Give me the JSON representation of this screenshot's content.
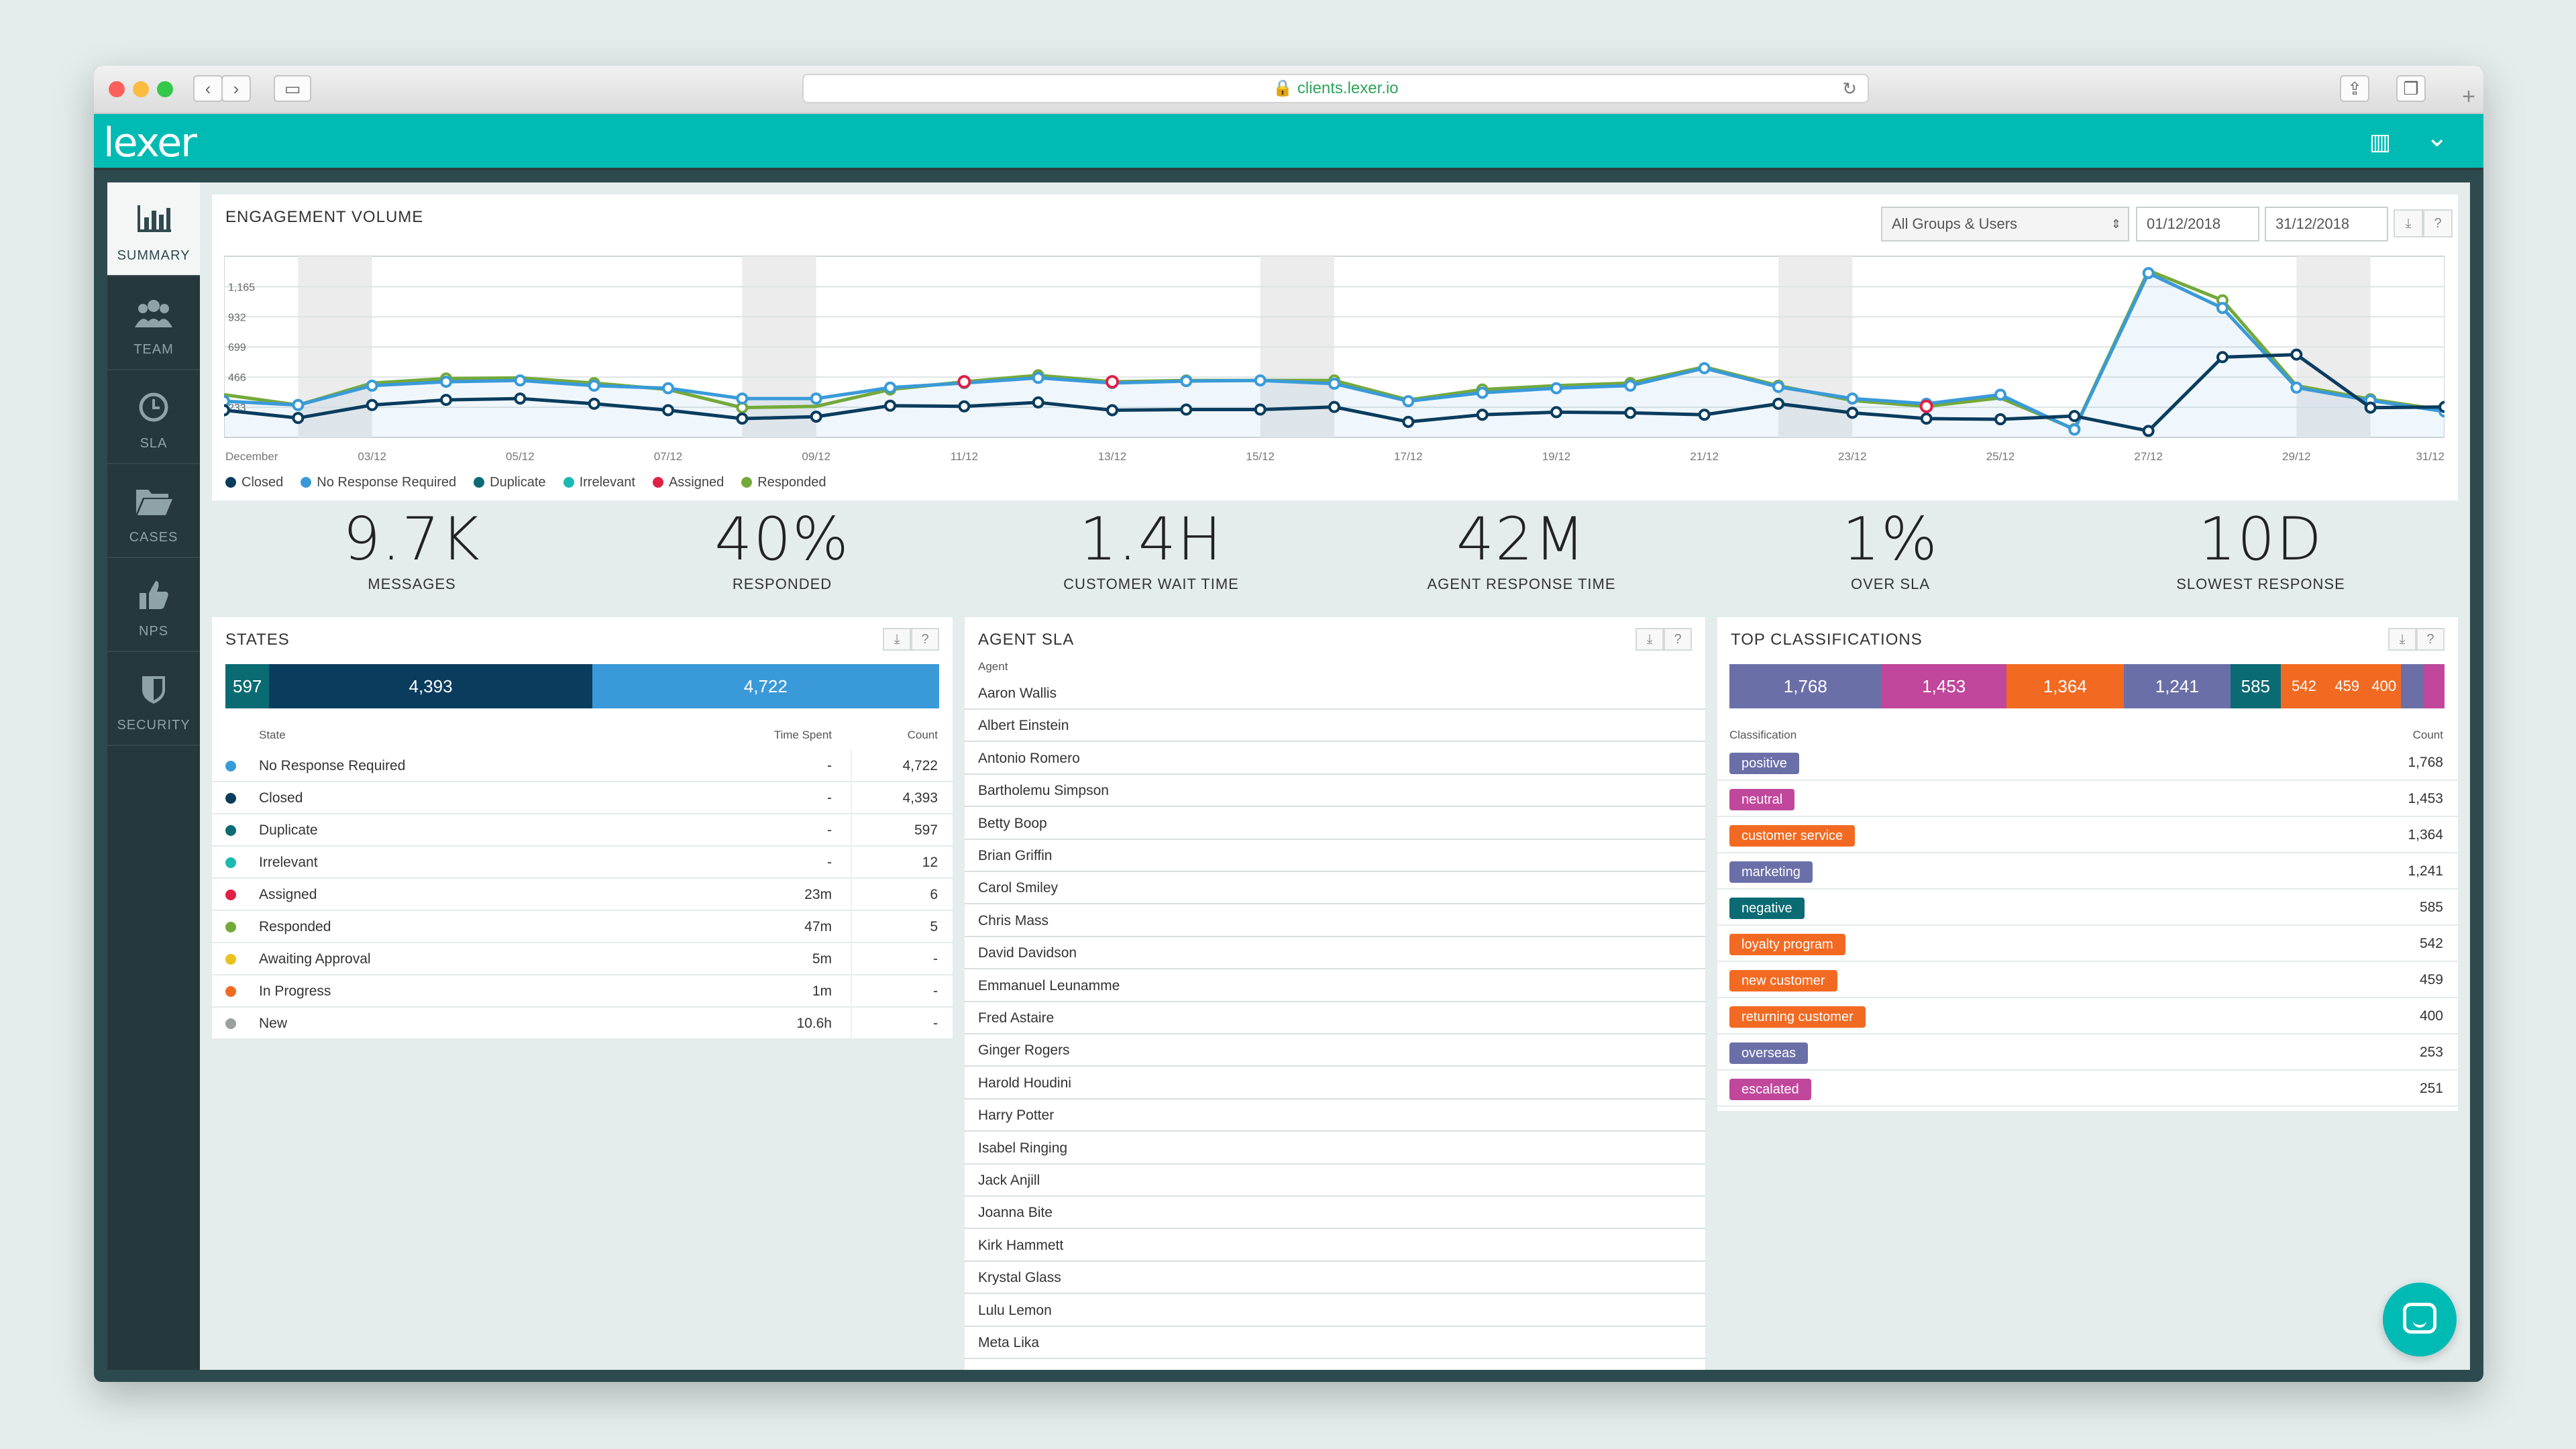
{
  "browser": {
    "url": "clients.lexer.io",
    "back": "‹",
    "forward": "›",
    "sidebar_toggle": "▭",
    "reload": "↻",
    "share": "⇪",
    "tabs": "❐",
    "new_tab": "+"
  },
  "app": {
    "logo": "lexer",
    "building_icon": "▥",
    "chevron": "⌄"
  },
  "nav": [
    {
      "label": "SUMMARY",
      "icon": "bar-chart-icon",
      "glyph": "▥",
      "active": true
    },
    {
      "label": "TEAM",
      "icon": "team-icon",
      "glyph": "☻",
      "active": false
    },
    {
      "label": "SLA",
      "icon": "clock-icon",
      "glyph": "◷",
      "active": false
    },
    {
      "label": "CASES",
      "icon": "folder-icon",
      "glyph": "▰",
      "active": false
    },
    {
      "label": "NPS",
      "icon": "thumbs-up-icon",
      "glyph": "♥",
      "active": false
    },
    {
      "label": "SECURITY",
      "icon": "shield-icon",
      "glyph": "◆",
      "active": false
    }
  ],
  "engagement": {
    "title": "ENGAGEMENT VOLUME",
    "group_select": "All Groups & Users",
    "date_from": "01/12/2018",
    "date_to": "31/12/2018",
    "download": "⤓",
    "help": "?"
  },
  "chart_data": {
    "type": "line",
    "y_ticks": [
      "1,165",
      "932",
      "699",
      "466",
      "233"
    ],
    "ylim": [
      0,
      1400
    ],
    "x_labels": [
      "December",
      "03/12",
      "05/12",
      "07/12",
      "09/12",
      "11/12",
      "13/12",
      "15/12",
      "17/12",
      "19/12",
      "21/12",
      "23/12",
      "25/12",
      "27/12",
      "29/12",
      "31/12"
    ],
    "x": [
      1,
      2,
      3,
      4,
      5,
      6,
      7,
      8,
      9,
      10,
      11,
      12,
      13,
      14,
      15,
      16,
      17,
      18,
      19,
      20,
      21,
      22,
      23,
      24,
      25,
      26,
      27,
      28,
      29,
      30,
      31
    ],
    "weekends": [
      [
        2,
        3
      ],
      [
        8,
        9
      ],
      [
        15,
        16
      ],
      [
        22,
        23
      ],
      [
        29,
        30
      ]
    ],
    "series": [
      {
        "name": "Closed",
        "color": "#0a3c5e",
        "values": [
          210,
          150,
          250,
          290,
          300,
          260,
          210,
          145,
          160,
          245,
          240,
          270,
          210,
          215,
          215,
          235,
          120,
          175,
          195,
          190,
          175,
          260,
          190,
          145,
          140,
          165,
          50,
          620,
          640,
          230,
          235
        ]
      },
      {
        "name": "No Response Required",
        "color": "#3a9ad9",
        "values": [
          280,
          250,
          400,
          430,
          440,
          400,
          380,
          300,
          300,
          385,
          420,
          460,
          420,
          435,
          440,
          415,
          280,
          345,
          380,
          400,
          535,
          390,
          300,
          260,
          330,
          60,
          1270,
          1000,
          385,
          285,
          200
        ]
      },
      {
        "name": "Duplicate",
        "color": "#0b6b73",
        "values": [
          0,
          0,
          0,
          0,
          0,
          0,
          0,
          0,
          0,
          0,
          0,
          0,
          0,
          0,
          0,
          0,
          0,
          0,
          0,
          0,
          0,
          0,
          0,
          0,
          0,
          0,
          0,
          0,
          0,
          0,
          0
        ]
      },
      {
        "name": "Irrelevant",
        "color": "#1bb9b1",
        "values": [
          0,
          0,
          0,
          0,
          0,
          0,
          0,
          0,
          0,
          0,
          0,
          0,
          0,
          0,
          0,
          0,
          0,
          0,
          0,
          0,
          0,
          0,
          0,
          0,
          0,
          0,
          0,
          0,
          0,
          0,
          0
        ]
      },
      {
        "name": "Assigned",
        "color": "#e02045",
        "values": [
          0,
          0,
          0,
          0,
          0,
          0,
          0,
          0,
          0,
          0,
          0,
          0,
          0,
          0,
          0,
          0,
          0,
          0,
          0,
          0,
          0,
          0,
          0,
          0,
          0,
          0,
          0,
          0,
          0,
          0,
          0
        ]
      },
      {
        "name": "Responded",
        "color": "#74a93a",
        "values": [
          330,
          250,
          420,
          455,
          460,
          420,
          370,
          230,
          240,
          370,
          430,
          480,
          430,
          440,
          440,
          440,
          290,
          370,
          400,
          420,
          545,
          400,
          285,
          240,
          305,
          65,
          1290,
          1060,
          400,
          295,
          210
        ]
      }
    ]
  },
  "stats": [
    {
      "value": "9.7K",
      "label": "MESSAGES"
    },
    {
      "value": "40%",
      "label": "RESPONDED"
    },
    {
      "value": "1.4H",
      "label": "CUSTOMER WAIT TIME"
    },
    {
      "value": "42M",
      "label": "AGENT RESPONSE TIME"
    },
    {
      "value": "1%",
      "label": "OVER SLA"
    },
    {
      "value": "10D",
      "label": "SLOWEST RESPONSE"
    }
  ],
  "states": {
    "title": "STATES",
    "bar": [
      {
        "label": "597",
        "value": 597,
        "color": "#0b6b73"
      },
      {
        "label": "4,393",
        "value": 4393,
        "color": "#0a3c5e"
      },
      {
        "label": "4,722",
        "value": 4722,
        "color": "#3a9ad9"
      }
    ],
    "headers": {
      "state": "State",
      "time": "Time Spent",
      "count": "Count"
    },
    "rows": [
      {
        "name": "No Response Required",
        "time": "-",
        "count": "4,722",
        "color": "#3a9ad9"
      },
      {
        "name": "Closed",
        "time": "-",
        "count": "4,393",
        "color": "#0a3c5e"
      },
      {
        "name": "Duplicate",
        "time": "-",
        "count": "597",
        "color": "#0b6b73"
      },
      {
        "name": "Irrelevant",
        "time": "-",
        "count": "12",
        "color": "#1bb9b1"
      },
      {
        "name": "Assigned",
        "time": "23m",
        "count": "6",
        "color": "#e02045"
      },
      {
        "name": "Responded",
        "time": "47m",
        "count": "5",
        "color": "#74a93a"
      },
      {
        "name": "Awaiting Approval",
        "time": "5m",
        "count": "-",
        "color": "#e8c11e"
      },
      {
        "name": "In Progress",
        "time": "1m",
        "count": "-",
        "color": "#f26a22"
      },
      {
        "name": "New",
        "time": "10.6h",
        "count": "-",
        "color": "#9aa0a0"
      }
    ]
  },
  "agent_sla": {
    "title": "AGENT SLA",
    "header": "Agent",
    "agents": [
      "Aaron Wallis",
      "Albert Einstein",
      "Antonio Romero",
      "Bartholemu Simpson",
      "Betty Boop",
      "Brian Griffin",
      "Carol Smiley",
      "Chris Mass",
      "David Davidson",
      "Emmanuel Leunamme",
      "Fred Astaire",
      "Ginger Rogers",
      "Harold Houdini",
      "Harry Potter",
      "Isabel Ringing",
      "Jack Anjill",
      "Joanna Bite",
      "Kirk Hammett",
      "Krystal Glass",
      "Lulu Lemon",
      "Meta Lika"
    ]
  },
  "classifications": {
    "title": "TOP CLASSIFICATIONS",
    "headers": {
      "name": "Classification",
      "count": "Count"
    },
    "bar": [
      {
        "label": "1,768",
        "value": 1768,
        "color": "#6b6fa8"
      },
      {
        "label": "1,453",
        "value": 1453,
        "color": "#c0479b"
      },
      {
        "label": "1,364",
        "value": 1364,
        "color": "#f26a22"
      },
      {
        "label": "1,241",
        "value": 1241,
        "color": "#6b6fa8"
      },
      {
        "label": "585",
        "value": 585,
        "color": "#0b6b73"
      },
      {
        "label": "542",
        "value": 542,
        "color": "#f26a22"
      },
      {
        "label": "459",
        "value": 459,
        "color": "#f26a22"
      },
      {
        "label": "400",
        "value": 400,
        "color": "#f26a22"
      },
      {
        "label": "",
        "value": 253,
        "color": "#6b6fa8"
      },
      {
        "label": "",
        "value": 251,
        "color": "#c0479b"
      }
    ],
    "rows": [
      {
        "name": "positive",
        "count": "1,768",
        "color": "#6b6fa8"
      },
      {
        "name": "neutral",
        "count": "1,453",
        "color": "#c0479b"
      },
      {
        "name": "customer service",
        "count": "1,364",
        "color": "#f26a22"
      },
      {
        "name": "marketing",
        "count": "1,241",
        "color": "#6b6fa8"
      },
      {
        "name": "negative",
        "count": "585",
        "color": "#0b6b73"
      },
      {
        "name": "loyalty program",
        "count": "542",
        "color": "#f26a22"
      },
      {
        "name": "new customer",
        "count": "459",
        "color": "#f26a22"
      },
      {
        "name": "returning customer",
        "count": "400",
        "color": "#f26a22"
      },
      {
        "name": "overseas",
        "count": "253",
        "color": "#6b6fa8"
      },
      {
        "name": "escalated",
        "count": "251",
        "color": "#c0479b"
      }
    ]
  }
}
